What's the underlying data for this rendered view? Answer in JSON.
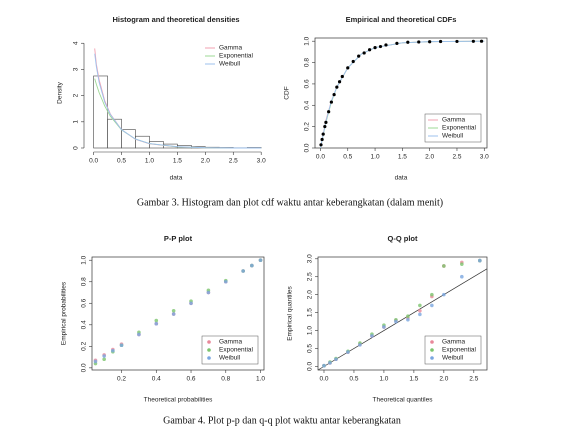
{
  "chart_data": [
    {
      "type": "histogram",
      "title": "Histogram and theoretical densities",
      "x_label": "data",
      "y_label": "Density",
      "bins": [
        0,
        0.25,
        0.5,
        0.75,
        1,
        1.25,
        1.5,
        1.75,
        2,
        2.25,
        2.5,
        2.75,
        3
      ],
      "counts": [
        2.75,
        1.1,
        0.7,
        0.45,
        0.25,
        0.15,
        0.1,
        0.05,
        0.03,
        0.02,
        0.01,
        0.02
      ],
      "bar_color": "#ffffff",
      "x": [
        0.02,
        0.05,
        0.1,
        0.2,
        0.3,
        0.5,
        0.75,
        1,
        1.5,
        2,
        2.5,
        3
      ],
      "series": [
        {
          "name": "Gamma",
          "color": "#f2a0b0",
          "values": [
            3.8,
            3.2,
            2.6,
            1.8,
            1.3,
            0.7,
            0.33,
            0.16,
            0.04,
            0.01,
            0,
            0
          ]
        },
        {
          "name": "Exponential",
          "color": "#9ed896",
          "values": [
            2.65,
            2.43,
            2.11,
            1.6,
            1.21,
            0.69,
            0.34,
            0.17,
            0.04,
            0.01,
            0,
            0
          ]
        },
        {
          "name": "Weibull",
          "color": "#9ec2ee",
          "values": [
            3.6,
            3.1,
            2.5,
            1.75,
            1.28,
            0.7,
            0.34,
            0.17,
            0.05,
            0.01,
            0,
            0
          ]
        }
      ],
      "xlim": [
        -0.1,
        3.05
      ],
      "ylim": [
        0,
        4.2
      ],
      "xticks": [
        {
          "value": 0,
          "label": "0.0"
        },
        0.5,
        {
          "value": 1,
          "label": "1.0"
        },
        1.5,
        {
          "value": 2,
          "label": "2.0"
        },
        2.5,
        {
          "value": 3,
          "label": "3.0"
        }
      ],
      "yticks": [
        0,
        1,
        2,
        3,
        4
      ],
      "legend": "top-right"
    },
    {
      "type": "ecdf",
      "title": "Empirical and theoretical CDFs",
      "x_label": "data",
      "y_label": "CDF",
      "points": {
        "color": "#000000",
        "x": [
          0.01,
          0.03,
          0.05,
          0.08,
          0.1,
          0.15,
          0.2,
          0.25,
          0.3,
          0.35,
          0.4,
          0.5,
          0.6,
          0.7,
          0.8,
          0.9,
          1.0,
          1.1,
          1.2,
          1.4,
          1.6,
          1.8,
          2.0,
          2.2,
          2.5,
          2.8,
          2.95
        ],
        "y": [
          0.03,
          0.08,
          0.13,
          0.2,
          0.24,
          0.34,
          0.43,
          0.5,
          0.57,
          0.62,
          0.67,
          0.75,
          0.81,
          0.86,
          0.89,
          0.92,
          0.94,
          0.95,
          0.965,
          0.98,
          0.99,
          0.993,
          0.995,
          0.997,
          0.998,
          0.999,
          1.0
        ]
      },
      "x": [
        0,
        0.1,
        0.2,
        0.3,
        0.5,
        0.75,
        1,
        1.5,
        2,
        3
      ],
      "series": [
        {
          "name": "Gamma",
          "color": "#f2a0b0",
          "values": [
            0,
            0.26,
            0.44,
            0.57,
            0.75,
            0.88,
            0.94,
            0.985,
            0.996,
            1.0
          ]
        },
        {
          "name": "Exponential",
          "color": "#9ed896",
          "values": [
            0,
            0.24,
            0.43,
            0.57,
            0.75,
            0.88,
            0.94,
            0.985,
            0.996,
            1.0
          ]
        },
        {
          "name": "Weibull",
          "color": "#9ec2ee",
          "values": [
            0,
            0.25,
            0.44,
            0.57,
            0.75,
            0.88,
            0.94,
            0.985,
            0.996,
            1.0
          ]
        }
      ],
      "xlim": [
        -0.1,
        3.05
      ],
      "ylim": [
        0,
        1.03
      ],
      "xticks": [
        {
          "value": 0,
          "label": "0.0"
        },
        0.5,
        {
          "value": 1,
          "label": "1.0"
        },
        1.5,
        {
          "value": 2,
          "label": "2.0"
        },
        2.5,
        {
          "value": 3,
          "label": "3.0"
        }
      ],
      "yticks": [
        {
          "value": 0,
          "label": "0.0"
        },
        0.2,
        0.4,
        0.6,
        0.8,
        {
          "value": 1,
          "label": "1.0"
        }
      ],
      "legend": "bottom-right"
    },
    {
      "type": "scatter",
      "title": "P-P plot",
      "x_label": "Theoretical probabilities",
      "y_label": "Empirical probabilities",
      "x": [
        0.05,
        0.1,
        0.15,
        0.2,
        0.3,
        0.4,
        0.5,
        0.6,
        0.7,
        0.8,
        0.9,
        0.95,
        1.0
      ],
      "series": [
        {
          "name": "Gamma",
          "color": "#e8889a",
          "values": [
            0.07,
            0.12,
            0.17,
            0.22,
            0.31,
            0.41,
            0.5,
            0.6,
            0.7,
            0.8,
            0.9,
            0.95,
            1.0
          ]
        },
        {
          "name": "Exponential",
          "color": "#7cc46e",
          "values": [
            0.04,
            0.08,
            0.15,
            0.21,
            0.33,
            0.44,
            0.53,
            0.62,
            0.72,
            0.81,
            0.9,
            0.95,
            1.0
          ]
        },
        {
          "name": "Weibull",
          "color": "#7aa6e0",
          "values": [
            0.06,
            0.11,
            0.16,
            0.21,
            0.31,
            0.41,
            0.5,
            0.6,
            0.7,
            0.8,
            0.9,
            0.95,
            1.0
          ]
        }
      ],
      "xlim": [
        0.03,
        1.02
      ],
      "ylim": [
        -0.02,
        1.03
      ],
      "xticks": [
        0.2,
        0.4,
        0.6,
        0.8,
        {
          "value": 1,
          "label": "1.0"
        }
      ],
      "yticks": [
        {
          "value": 0,
          "label": "0.0"
        },
        0.2,
        0.4,
        0.6,
        0.8,
        {
          "value": 1,
          "label": "1.0"
        }
      ],
      "legend": "bottom-right"
    },
    {
      "type": "scatter",
      "title": "Q-Q plot",
      "x_label": "Theoretical quantiles",
      "y_label": "Empirical quantiles",
      "x": [
        0,
        0.1,
        0.2,
        0.4,
        0.6,
        0.8,
        1.0,
        1.2,
        1.4,
        1.6,
        1.8,
        2.0,
        2.3,
        2.6
      ],
      "series": [
        {
          "name": "Gamma",
          "color": "#e8889a",
          "values": [
            0.02,
            0.1,
            0.2,
            0.4,
            0.62,
            0.85,
            1.1,
            1.28,
            1.35,
            1.55,
            1.95,
            2.8,
            2.9,
            2.95
          ]
        },
        {
          "name": "Exponential",
          "color": "#7cc46e",
          "values": [
            0.02,
            0.12,
            0.22,
            0.42,
            0.65,
            0.9,
            1.15,
            1.3,
            1.4,
            1.7,
            2.0,
            2.8,
            2.85,
            2.95
          ]
        },
        {
          "name": "Weibull",
          "color": "#7aa6e0",
          "values": [
            0.02,
            0.1,
            0.2,
            0.4,
            0.6,
            0.85,
            1.1,
            1.25,
            1.3,
            1.45,
            1.7,
            2.0,
            2.5,
            2.95
          ]
        }
      ],
      "xlim": [
        -0.1,
        2.72
      ],
      "ylim": [
        -0.1,
        3.05
      ],
      "reference_line": true,
      "xticks": [
        {
          "value": 0,
          "label": "0.0"
        },
        0.5,
        {
          "value": 1,
          "label": "1.0"
        },
        1.5,
        {
          "value": 2,
          "label": "2.0"
        },
        2.5
      ],
      "yticks": [
        {
          "value": 0,
          "label": "0.0"
        },
        0.5,
        {
          "value": 1,
          "label": "1.0"
        },
        1.5,
        {
          "value": 2,
          "label": "2.0"
        },
        2.5,
        {
          "value": 3,
          "label": "3.0"
        }
      ],
      "legend": "bottom-right"
    }
  ],
  "captions": [
    "Gambar 3. Histogram dan plot cdf waktu antar keberangkatan (dalam menit)",
    "Gambar 4. Plot p-p dan q-q plot waktu antar keberangkatan"
  ]
}
